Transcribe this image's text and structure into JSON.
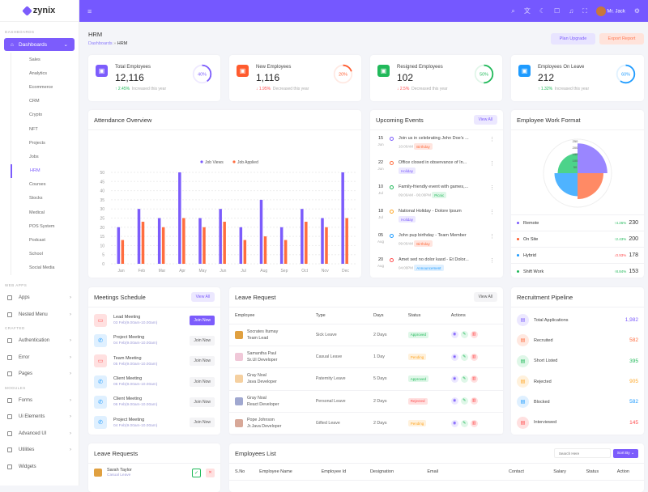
{
  "brand": {
    "name": "zynix"
  },
  "sidebar": {
    "sections": [
      "DASHBOARDS",
      "WEB APPS",
      "CRAFTED",
      "MODULES"
    ],
    "dashboards_label": "Dashboards",
    "sub_items": [
      "Sales",
      "Analytics",
      "Ecommerce",
      "CRM",
      "Crypto",
      "NFT",
      "Projects",
      "Jobs",
      "HRM",
      "Courses",
      "Stocks",
      "Medical",
      "POS System",
      "Podcast",
      "School",
      "Social Media"
    ],
    "active_sub": "HRM",
    "web_apps": [
      "Apps",
      "Nested Menu"
    ],
    "crafted": [
      "Authentication",
      "Error",
      "Pages"
    ],
    "modules": [
      "Forms",
      "Ui Elements",
      "Advanced UI",
      "Utilities",
      "Widgets"
    ]
  },
  "header": {
    "user_name": "Mr. Jack",
    "icons": [
      "menu-icon",
      "search-icon",
      "translate-icon",
      "moon-icon",
      "cart-icon",
      "bell-icon",
      "fullscreen-icon",
      "settings-icon"
    ]
  },
  "page": {
    "title": "HRM",
    "breadcrumb": [
      "Dashboards",
      "HRM"
    ],
    "plan_upgrade": "Plan Upgrade",
    "export_report": "Export Report"
  },
  "stats": [
    {
      "label": "Total Employees",
      "value": "12,116",
      "change": "2.45%",
      "direction": "up",
      "note": "Increased this year",
      "percent": "40%",
      "color": "#7c5cfc"
    },
    {
      "label": "New Employees",
      "value": "1,116",
      "change": "1.95%",
      "direction": "down",
      "note": "Decreased this year",
      "percent": "20%",
      "color": "#ff5b2e"
    },
    {
      "label": "Resigned Employees",
      "value": "102",
      "change": "2.5%",
      "direction": "down",
      "note": "Decreased this year",
      "percent": "50%",
      "color": "#21b95a"
    },
    {
      "label": "Employees On Leave",
      "value": "212",
      "change": "1.32%",
      "direction": "up",
      "note": "Increased this year",
      "percent": "60%",
      "color": "#1e9bff"
    }
  ],
  "attendance": {
    "title": "Attendance Overview"
  },
  "chart_data": [
    {
      "type": "bar",
      "categories": [
        "Jan",
        "Feb",
        "Mar",
        "Apr",
        "May",
        "Jun",
        "Jul",
        "Aug",
        "Sep",
        "Oct",
        "Nov",
        "Dec"
      ],
      "series": [
        {
          "name": "Job Views",
          "color": "#7c5cfc",
          "values": [
            20,
            30,
            25,
            50,
            25,
            30,
            20,
            35,
            20,
            30,
            25,
            50
          ]
        },
        {
          "name": "Job Applied",
          "color": "#ff6d3f",
          "values": [
            13,
            23,
            20,
            25,
            20,
            23,
            13,
            15,
            13,
            23,
            20,
            25
          ]
        }
      ],
      "ylim": [
        0,
        50
      ],
      "yticks": [
        0,
        5,
        10,
        15,
        20,
        25,
        30,
        35,
        40,
        45,
        50
      ],
      "legend": "top",
      "grid": true
    },
    {
      "type": "polar-area",
      "categories": [
        "Remote",
        "On Site",
        "Hybrid",
        "Shift Work"
      ],
      "values": [
        230,
        200,
        178,
        153
      ],
      "colors": [
        "#9a86ff",
        "#ff8a65",
        "#4fb3ff",
        "#4cd38a"
      ],
      "rticks": [
        50,
        100,
        150,
        200,
        250
      ]
    }
  ],
  "events": {
    "title": "Upcoming Events",
    "view_all": "View All",
    "items": [
      {
        "day": "15",
        "month": "Jun",
        "title": "Join us in celebrating John Doe's ...",
        "time": "10:00AM",
        "tag": "Birthday",
        "color": "#7c5cfc",
        "tag_bg": "#ffe5df",
        "tag_fg": "#ff6d3f"
      },
      {
        "day": "22",
        "month": "Jun",
        "title": "Office closed in observance of In...",
        "time": "",
        "tag": "Holiday",
        "color": "#ff6d3f",
        "tag_bg": "#ece8ff",
        "tag_fg": "#7c5cfc"
      },
      {
        "day": "10",
        "month": "Jul",
        "title": "Family-friendly event with games,...",
        "time": "09:00AM - 06:00PM",
        "tag": "Picnic",
        "color": "#21b95a",
        "tag_bg": "#dff7e8",
        "tag_fg": "#21b95a"
      },
      {
        "day": "18",
        "month": "Jul",
        "title": "National Holiday - Dolore Ipsum",
        "time": "",
        "tag": "Holiday",
        "color": "#ffa726",
        "tag_bg": "#ece8ff",
        "tag_fg": "#7c5cfc"
      },
      {
        "day": "05",
        "month": "Aug",
        "title": "John pup birthday - Team Member",
        "time": "09:00AM",
        "tag": "Birthday",
        "color": "#1e9bff",
        "tag_bg": "#ffe5df",
        "tag_fg": "#ff6d3f"
      },
      {
        "day": "20",
        "month": "Aug",
        "title": "Amet sed no dolor kasd - Et Dolor...",
        "time": "04:00PM",
        "tag": "Announcement",
        "color": "#ff4d4f",
        "tag_bg": "#dff0ff",
        "tag_fg": "#1e9bff"
      }
    ]
  },
  "work_format": {
    "title": "Employee Work Format",
    "items": [
      {
        "label": "Remote",
        "change": "4.26%",
        "direction": "up",
        "value": "230",
        "color": "#7c5cfc"
      },
      {
        "label": "On Site",
        "change": "2.43%",
        "direction": "up",
        "value": "200",
        "color": "#ff5b2e"
      },
      {
        "label": "Hybrid",
        "change": "0.93%",
        "direction": "down",
        "value": "178",
        "color": "#1e9bff"
      },
      {
        "label": "Shift Work",
        "change": "8.84%",
        "direction": "up",
        "value": "153",
        "color": "#21b95a"
      }
    ]
  },
  "meetings": {
    "title": "Meetings Schedule",
    "view_all": "View All",
    "items": [
      {
        "name": "Lead Meeting",
        "time": "03 Feb(9.00am-10.00am)",
        "kind": "video",
        "button": "Join Now",
        "primary": true
      },
      {
        "name": "Project Meeting",
        "time": "04 Feb(9.00am-10.00am)",
        "kind": "phone",
        "button": "Join Now",
        "primary": false
      },
      {
        "name": "Team Meeting",
        "time": "05 Feb(9.00am-10.00am)",
        "kind": "video",
        "button": "Join Now",
        "primary": false
      },
      {
        "name": "Client Meeting",
        "time": "06 Feb(9.00am-10.00am)",
        "kind": "phone",
        "button": "Join Now",
        "primary": false
      },
      {
        "name": "Client Meeting",
        "time": "06 Feb(9.00am-10.00am)",
        "kind": "phone",
        "button": "Join Now",
        "primary": false
      },
      {
        "name": "Project Meeting",
        "time": "04 Feb(9.00am-10.00am)",
        "kind": "phone",
        "button": "Join Now",
        "primary": false
      }
    ]
  },
  "leave_request": {
    "title": "Leave Request",
    "view_all": "View All",
    "columns": [
      "Employee",
      "Type",
      "Days",
      "Status",
      "Actions"
    ],
    "rows": [
      {
        "name": "Socrates Itumay",
        "role": "Team Lead",
        "type": "Sick Leave",
        "days": "2 Days",
        "status": "Approved"
      },
      {
        "name": "Samantha Paul",
        "role": "Sr.UI Developer",
        "type": "Casual Leave",
        "days": "1 Day",
        "status": "Pending"
      },
      {
        "name": "Gray Noal",
        "role": "Java Developer",
        "type": "Paternity Leave",
        "days": "5 Days",
        "status": "Approved"
      },
      {
        "name": "Gray Noal",
        "role": "React Developer",
        "type": "Personal Leave",
        "days": "2 Days",
        "status": "Rejected"
      },
      {
        "name": "Pope Johnson",
        "role": "Jr.Java Developer",
        "type": "Gifted Leave",
        "days": "2 Days",
        "status": "Pending"
      }
    ]
  },
  "recruitment": {
    "title": "Recruitment Pipeline",
    "items": [
      {
        "label": "Total Applications",
        "value": "1,982",
        "color": "#7c5cfc",
        "bg": "#ece8ff"
      },
      {
        "label": "Recruited",
        "value": "582",
        "color": "#ff6d3f",
        "bg": "#ffe8e0"
      },
      {
        "label": "Short Listed",
        "value": "395",
        "color": "#21b95a",
        "bg": "#dff7e8"
      },
      {
        "label": "Rejected",
        "value": "905",
        "color": "#ffa726",
        "bg": "#fff1dc"
      },
      {
        "label": "Blocked",
        "value": "582",
        "color": "#1e9bff",
        "bg": "#dff0ff"
      },
      {
        "label": "Interviewed",
        "value": "145",
        "color": "#ff4d4f",
        "bg": "#ffe0e0"
      }
    ]
  },
  "leave_requests": {
    "title": "Leave Requests",
    "items": [
      {
        "name": "Sarah Taylor",
        "type": "Casual Leave"
      }
    ]
  },
  "employees": {
    "title": "Employees List",
    "search_placeholder": "Search Here",
    "sort_label": "Sort By",
    "columns": [
      "S.No",
      "Employee Name",
      "Employee Id",
      "Designation",
      "Email",
      "Contact",
      "Salary",
      "Status",
      "Action"
    ]
  }
}
